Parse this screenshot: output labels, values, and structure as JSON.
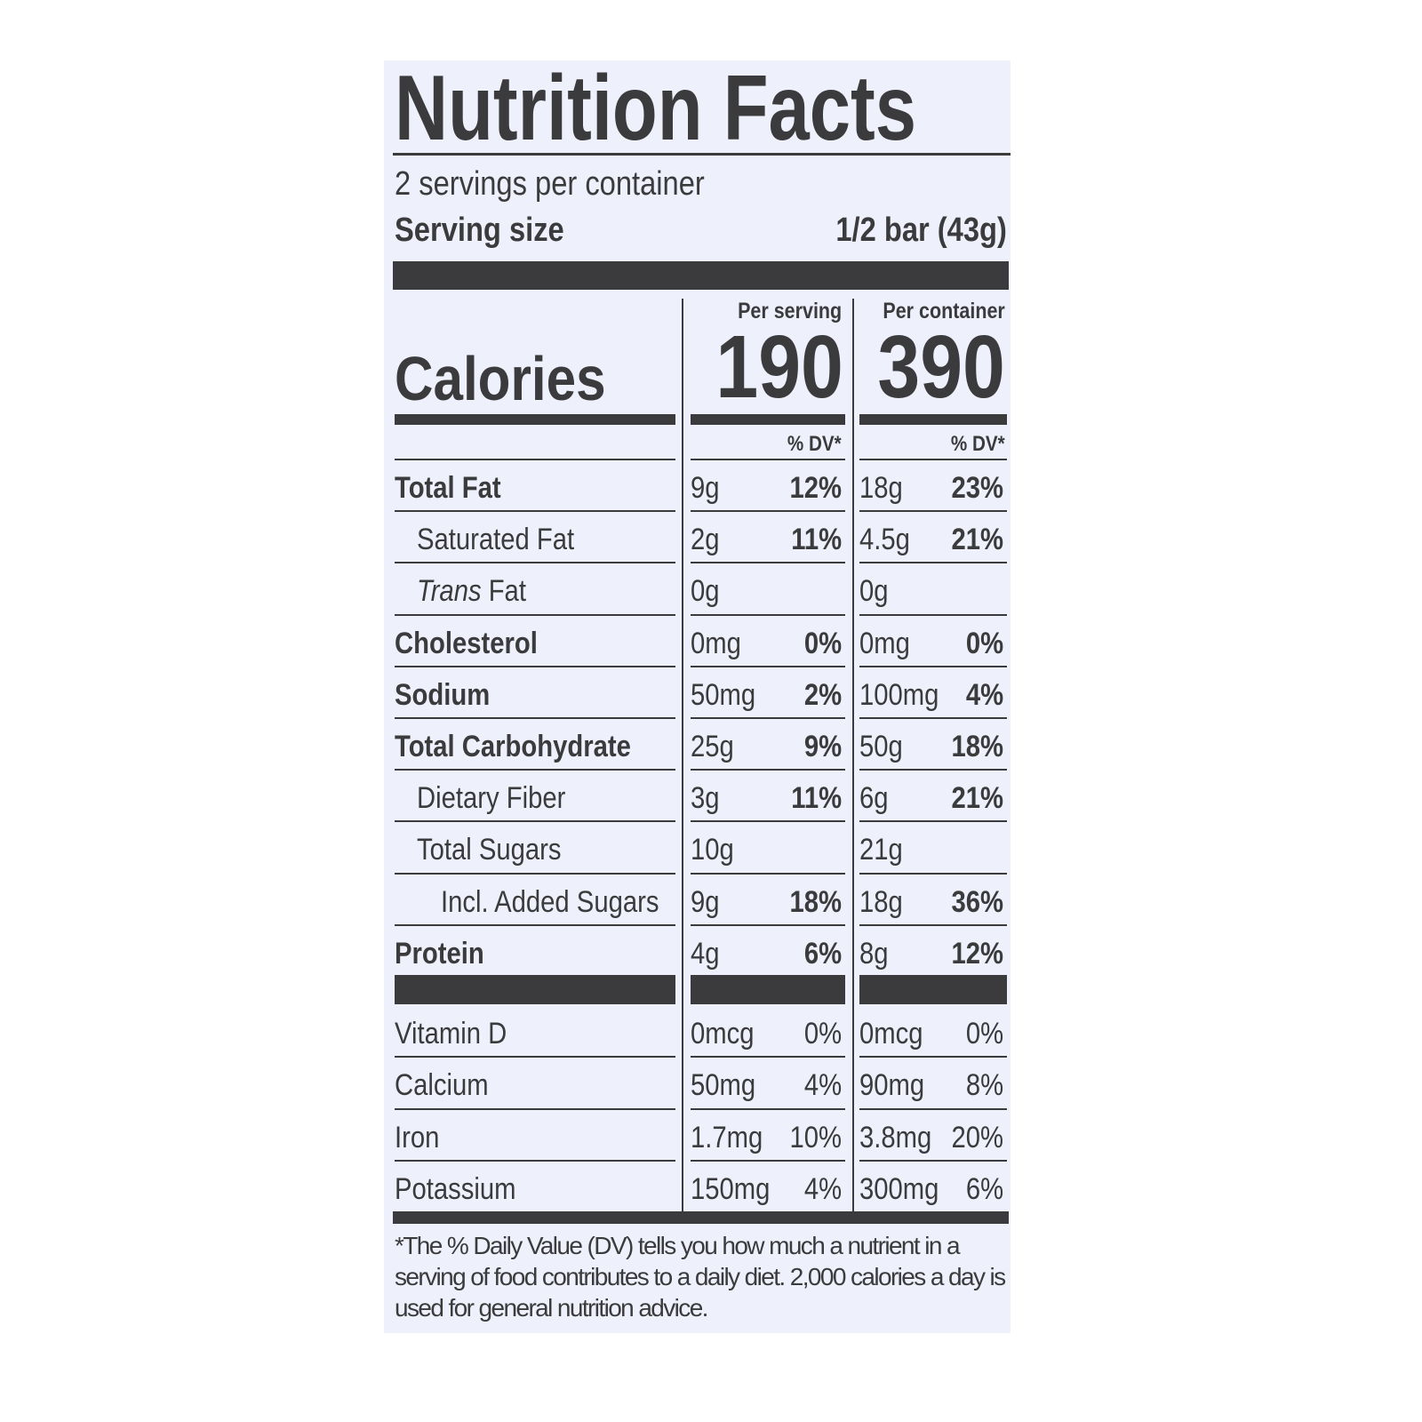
{
  "label": {
    "title": "Nutrition Facts",
    "servings_per_container": "2 servings per container",
    "serving_size_label": "Serving size",
    "serving_size_value": "1/2 bar (43g)",
    "per_serving_header": "Per serving",
    "per_container_header": "Per container",
    "calories_label": "Calories",
    "calories_per_serving": "190",
    "calories_per_container": "390",
    "dv_header_serving": "% DV*",
    "dv_header_container": "% DV*",
    "nutrients": [
      {
        "name": "Total Fat",
        "bold": true,
        "indent": 0,
        "serving_amount": "9g",
        "serving_dv": "12%",
        "container_amount": "18g",
        "container_dv": "23%"
      },
      {
        "name": "Saturated Fat",
        "bold": false,
        "indent": 1,
        "serving_amount": "2g",
        "serving_dv": "11%",
        "container_amount": "4.5g",
        "container_dv": "21%"
      },
      {
        "name_italic": "Trans",
        "name": " Fat",
        "bold": false,
        "indent": 1,
        "serving_amount": "0g",
        "serving_dv": "",
        "container_amount": "0g",
        "container_dv": ""
      },
      {
        "name": "Cholesterol",
        "bold": true,
        "indent": 0,
        "serving_amount": "0mg",
        "serving_dv": "0%",
        "container_amount": "0mg",
        "container_dv": "0%"
      },
      {
        "name": "Sodium",
        "bold": true,
        "indent": 0,
        "serving_amount": "50mg",
        "serving_dv": "2%",
        "container_amount": "100mg",
        "container_dv": "4%"
      },
      {
        "name": "Total Carbohydrate",
        "bold": true,
        "indent": 0,
        "serving_amount": "25g",
        "serving_dv": "9%",
        "container_amount": "50g",
        "container_dv": "18%"
      },
      {
        "name": "Dietary Fiber",
        "bold": false,
        "indent": 1,
        "serving_amount": "3g",
        "serving_dv": "11%",
        "container_amount": "6g",
        "container_dv": "21%"
      },
      {
        "name": "Total Sugars",
        "bold": false,
        "indent": 1,
        "serving_amount": "10g",
        "serving_dv": "",
        "container_amount": "21g",
        "container_dv": ""
      },
      {
        "name": "Incl. Added Sugars",
        "bold": false,
        "indent": 2,
        "serving_amount": "9g",
        "serving_dv": "18%",
        "container_amount": "18g",
        "container_dv": "36%"
      },
      {
        "name": "Protein",
        "bold": true,
        "indent": 0,
        "serving_amount": "4g",
        "serving_dv": "6%",
        "container_amount": "8g",
        "container_dv": "12%"
      }
    ],
    "vitamins": [
      {
        "name": "Vitamin D",
        "serving_amount": "0mcg",
        "serving_dv": "0%",
        "container_amount": "0mcg",
        "container_dv": "0%"
      },
      {
        "name": "Calcium",
        "serving_amount": "50mg",
        "serving_dv": "4%",
        "container_amount": "90mg",
        "container_dv": "8%"
      },
      {
        "name": "Iron",
        "serving_amount": "1.7mg",
        "serving_dv": "10%",
        "container_amount": "3.8mg",
        "container_dv": "20%"
      },
      {
        "name": "Potassium",
        "serving_amount": "150mg",
        "serving_dv": "4%",
        "container_amount": "300mg",
        "container_dv": "6%"
      }
    ],
    "footnote": "*The % Daily Value (DV) tells you how much a nutrient in a serving of food contributes to a daily diet. 2,000 calories a day is used for general nutrition advice."
  }
}
